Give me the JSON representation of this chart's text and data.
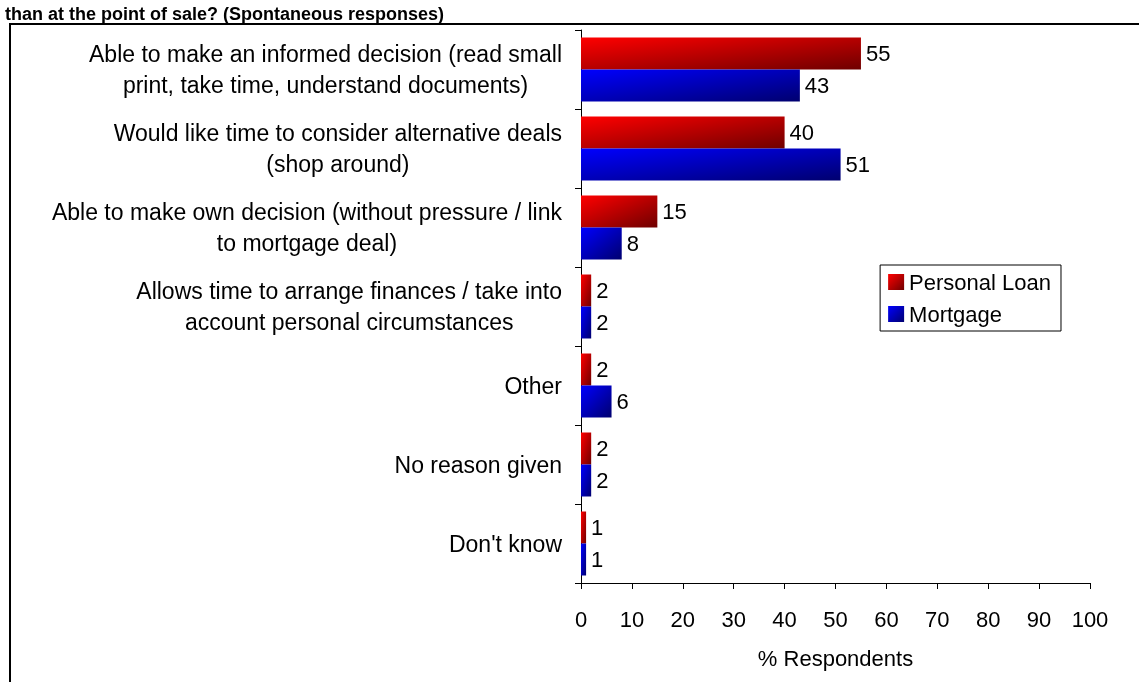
{
  "chart_data": {
    "type": "bar",
    "orientation": "horizontal",
    "title": "than at the point of sale? (Spontaneous responses)",
    "categories": [
      "Able to make an informed decision (read small print, take time, understand documents)",
      "Would like time to consider alternative deals (shop around)",
      "Able to make own decision (without pressure / link to mortgage deal)",
      "Allows time to arrange finances / take into account personal circumstances",
      "Other",
      "No reason given",
      "Don't know"
    ],
    "series": [
      {
        "name": "Personal Loan",
        "color": "#c00000",
        "values": [
          55,
          40,
          15,
          2,
          2,
          2,
          1
        ]
      },
      {
        "name": "Mortgage",
        "color": "#0000c0",
        "values": [
          43,
          51,
          8,
          2,
          6,
          2,
          1
        ]
      }
    ],
    "xlim": [
      0,
      100
    ],
    "xticks": [
      0,
      10,
      20,
      30,
      40,
      50,
      60,
      70,
      80,
      90,
      100
    ],
    "xlabel": "% Respondents",
    "data_labels": true,
    "legend": "right",
    "grid": false
  }
}
